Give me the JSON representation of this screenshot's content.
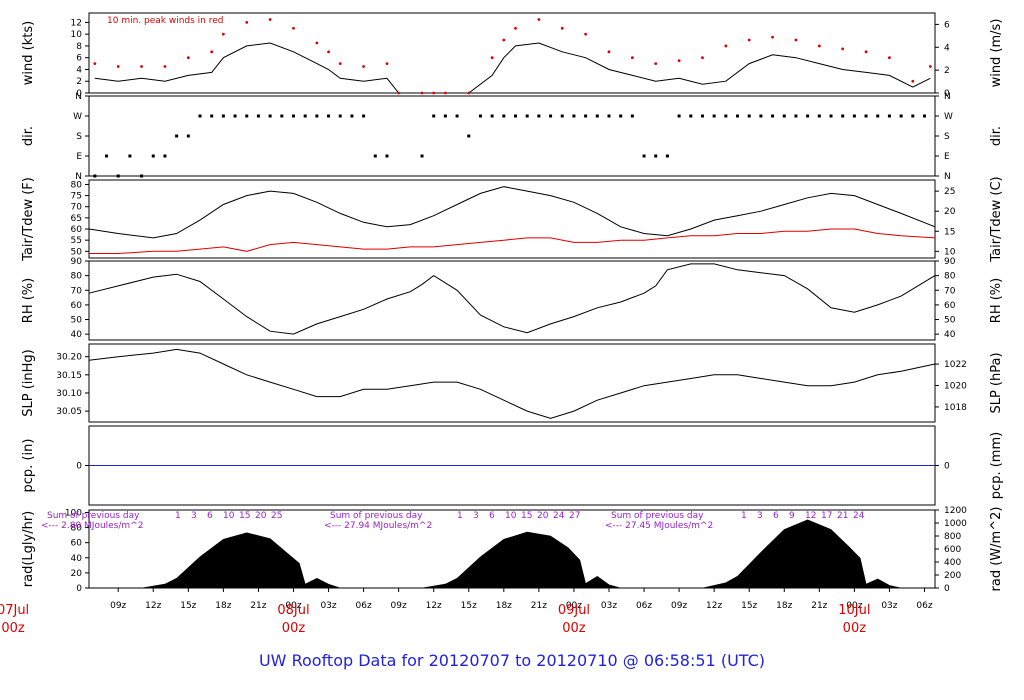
{
  "title": "UW Rooftop Data for 20120707  to  20120710 @ 06:58:51  (UTC)",
  "colors": {
    "title": "#2222dd",
    "red": "#dd0000",
    "blue": "#2222dd",
    "purple": "#9922cc",
    "black": "#000000"
  },
  "x_axis": {
    "hour_ticks": [
      "09z",
      "12z",
      "15z",
      "18z",
      "21z",
      "00z",
      "03z",
      "06z",
      "09z",
      "12z",
      "15z",
      "18z",
      "21z",
      "00z",
      "03z",
      "06z",
      "09z",
      "12z",
      "15z",
      "18z",
      "21z",
      "00z",
      "03z",
      "06z"
    ],
    "day_labels": [
      {
        "day": "07Jul",
        "time": "00z"
      },
      {
        "day": "08Jul",
        "time": "00z"
      },
      {
        "day": "09Jul",
        "time": "00z"
      },
      {
        "day": "10Jul",
        "time": "00z"
      }
    ]
  },
  "panels": {
    "wind": {
      "ylabel_left": "wind (kts)",
      "ylabel_right": "wind (m/s)",
      "left_ticks": [
        "0",
        "2",
        "4",
        "6",
        "8",
        "10",
        "12"
      ],
      "right_ticks": [
        "0",
        "2",
        "4",
        "6"
      ],
      "annotation": "10 min. peak winds in red"
    },
    "dir": {
      "ylabel": "dir.",
      "ticks": [
        "N",
        "E",
        "S",
        "W",
        "N"
      ]
    },
    "temp": {
      "ylabel_left": "Tair/Tdew (F)",
      "ylabel_right": "Tair/Tdew (C)",
      "left_ticks": [
        "50",
        "55",
        "60",
        "65",
        "70",
        "75",
        "80"
      ],
      "right_ticks": [
        "10",
        "15",
        "20",
        "25"
      ]
    },
    "rh": {
      "ylabel": "RH (%)",
      "ticks": [
        "40",
        "50",
        "60",
        "70",
        "80",
        "90"
      ]
    },
    "slp": {
      "ylabel_left": "SLP (inHg)",
      "ylabel_right": "SLP (hPa)",
      "left_ticks": [
        "30.05",
        "30.10",
        "30.15",
        "30.20"
      ],
      "right_ticks": [
        "1018",
        "1020",
        "1022"
      ]
    },
    "pcp": {
      "ylabel_left": "pcp. (in)",
      "ylabel_right": "pcp. (mm)",
      "left_ticks": [
        "0"
      ],
      "right_ticks": [
        "0"
      ]
    },
    "rad": {
      "ylabel_left": "rad(Lgly/hr)",
      "ylabel_right": "rad (W/m^2)",
      "left_ticks": [
        "0",
        "20",
        "40",
        "60",
        "80",
        "100"
      ],
      "right_ticks": [
        "0",
        "200",
        "400",
        "600",
        "800",
        "1000",
        "1200"
      ],
      "sum_label": "Sum of previous day",
      "sums": [
        "<--- 2.80 MJoules/m^2",
        "<--- 27.94 MJoules/m^2",
        "<--- 27.45 MJoules/m^2"
      ],
      "hour_marks": [
        [
          "1",
          "3",
          "6",
          "10",
          "15",
          "20",
          "25"
        ],
        [
          "1",
          "3",
          "6",
          "10",
          "15",
          "20",
          "24",
          "27"
        ],
        [
          "1",
          "3",
          "6",
          "9",
          "12",
          "17",
          "21",
          "24"
        ]
      ]
    }
  },
  "chart_data": {
    "type": "line",
    "time_axis": {
      "unit": "hours since 07Jul 00z",
      "range": [
        6.5,
        78.9
      ]
    },
    "series": [
      {
        "panel": "wind",
        "name": "wind speed (kts)",
        "x": [
          7,
          9,
          11,
          13,
          15,
          17,
          18,
          20,
          22,
          24,
          26,
          27,
          28,
          30,
          32,
          33,
          35,
          36,
          37,
          39,
          41,
          42,
          43,
          45,
          47,
          49,
          51,
          53,
          55,
          57,
          59,
          61,
          63,
          65,
          67,
          69,
          71,
          73,
          75,
          77,
          78.5
        ],
        "y": [
          2.5,
          2,
          2.5,
          2,
          3,
          3.5,
          6,
          8,
          8.5,
          7,
          5,
          4,
          2.5,
          2,
          2.5,
          0,
          0,
          0,
          0,
          0,
          3,
          6,
          8,
          8.5,
          7,
          6,
          4,
          3,
          2,
          2.5,
          1.5,
          2,
          5,
          6.5,
          6,
          5,
          4,
          3.5,
          3,
          1,
          2.5
        ]
      },
      {
        "panel": "wind",
        "name": "10 min. peak winds in red",
        "x": [
          7,
          9,
          11,
          13,
          15,
          17,
          18,
          20,
          22,
          24,
          26,
          27,
          28,
          30,
          32,
          33,
          35,
          36,
          37,
          39,
          41,
          42,
          43,
          45,
          47,
          49,
          51,
          53,
          55,
          57,
          59,
          61,
          63,
          65,
          67,
          69,
          71,
          73,
          75,
          77,
          78.5
        ],
        "y": [
          5,
          4.5,
          4.5,
          4.5,
          6,
          7,
          10,
          12,
          12.5,
          11,
          8.5,
          7,
          5,
          4.5,
          5,
          0,
          0,
          0,
          0,
          0,
          6,
          9,
          11,
          12.5,
          11,
          10,
          7,
          6,
          5,
          5.5,
          6,
          8,
          9,
          9.5,
          9,
          8,
          7.5,
          7,
          6,
          2,
          4.5
        ]
      },
      {
        "panel": "temp",
        "name": "Tair (F)",
        "x": [
          6.5,
          9,
          12,
          14,
          16,
          18,
          20,
          22,
          24,
          26,
          28,
          30,
          32,
          34,
          36,
          38,
          40,
          42,
          44,
          46,
          48,
          50,
          52,
          54,
          56,
          58,
          60,
          62,
          64,
          66,
          68,
          70,
          72,
          74,
          76,
          78.9
        ],
        "y": [
          60,
          58,
          56,
          58,
          64,
          71,
          75,
          77,
          76,
          72,
          67,
          63,
          61,
          62,
          66,
          71,
          76,
          79,
          77,
          75,
          72,
          67,
          61,
          58,
          57,
          60,
          64,
          66,
          68,
          71,
          74,
          76,
          75,
          71,
          67,
          61
        ]
      },
      {
        "panel": "temp",
        "name": "Tdew (F)",
        "x": [
          6.5,
          9,
          12,
          14,
          16,
          18,
          20,
          22,
          24,
          26,
          28,
          30,
          32,
          34,
          36,
          38,
          40,
          42,
          44,
          46,
          48,
          50,
          52,
          54,
          56,
          58,
          60,
          62,
          64,
          66,
          68,
          70,
          72,
          74,
          76,
          78.9
        ],
        "y": [
          49,
          49,
          50,
          50,
          51,
          52,
          50,
          53,
          54,
          53,
          52,
          51,
          51,
          52,
          52,
          53,
          54,
          55,
          56,
          56,
          54,
          54,
          55,
          55,
          56,
          57,
          57,
          58,
          58,
          59,
          59,
          60,
          60,
          58,
          57,
          56
        ]
      },
      {
        "panel": "rh",
        "name": "RH (%)",
        "x": [
          6.5,
          9,
          12,
          14,
          16,
          18,
          20,
          22,
          24,
          26,
          28,
          30,
          32,
          34,
          35,
          36,
          38,
          40,
          42,
          44,
          46,
          48,
          50,
          52,
          54,
          55,
          56,
          58,
          60,
          62,
          64,
          66,
          68,
          70,
          72,
          74,
          76,
          78.9
        ],
        "y": [
          68,
          73,
          79,
          81,
          76,
          64,
          52,
          42,
          40,
          47,
          52,
          57,
          64,
          69,
          74,
          80,
          70,
          53,
          45,
          41,
          47,
          52,
          58,
          62,
          68,
          73,
          84,
          88,
          88,
          84,
          82,
          80,
          71,
          58,
          55,
          60,
          66,
          80
        ]
      },
      {
        "panel": "slp",
        "name": "SLP (inHg)",
        "x": [
          6.5,
          9,
          12,
          14,
          16,
          18,
          20,
          22,
          24,
          26,
          28,
          30,
          32,
          34,
          36,
          38,
          40,
          42,
          44,
          46,
          48,
          50,
          52,
          54,
          56,
          58,
          60,
          62,
          64,
          66,
          68,
          70,
          72,
          74,
          76,
          78.9
        ],
        "y": [
          30.19,
          30.2,
          30.21,
          30.22,
          30.21,
          30.18,
          30.15,
          30.13,
          30.11,
          30.09,
          30.09,
          30.11,
          30.11,
          30.12,
          30.13,
          30.13,
          30.11,
          30.08,
          30.05,
          30.03,
          30.05,
          30.08,
          30.1,
          30.12,
          30.13,
          30.14,
          30.15,
          30.15,
          30.14,
          30.13,
          30.12,
          30.12,
          30.13,
          30.15,
          30.16,
          30.18
        ]
      },
      {
        "panel": "pcp",
        "name": "pcp. (in)",
        "x": [
          6.5,
          78.9
        ],
        "y": [
          0,
          0
        ]
      },
      {
        "panel": "rad",
        "name": "rad (W/m^2)",
        "x": [
          11,
          13,
          14,
          16,
          18,
          20,
          22,
          23.5,
          24.5,
          25,
          26,
          27,
          28,
          29,
          35,
          37,
          38,
          40,
          42,
          44,
          46,
          47.5,
          48.5,
          49,
          50,
          51,
          52,
          53,
          59,
          61,
          62,
          64,
          66,
          68,
          70,
          71.5,
          72.5,
          73,
          74,
          75,
          76,
          77
        ],
        "y": [
          0,
          60,
          150,
          480,
          750,
          850,
          760,
          530,
          380,
          60,
          150,
          60,
          0,
          0,
          0,
          60,
          150,
          480,
          750,
          860,
          800,
          620,
          430,
          70,
          180,
          50,
          0,
          0,
          0,
          80,
          180,
          550,
          900,
          1050,
          900,
          640,
          460,
          60,
          140,
          40,
          0,
          0
        ]
      }
    ],
    "direction_points": {
      "panel": "dir",
      "x": [
        7,
        8,
        9,
        10,
        11,
        12,
        13,
        14,
        15,
        16,
        17,
        18,
        19,
        20,
        21,
        22,
        23,
        24,
        25,
        26,
        27,
        28,
        29,
        30,
        31,
        32,
        35,
        36,
        37,
        38,
        39,
        40,
        41,
        42,
        43,
        44,
        45,
        46,
        47,
        48,
        49,
        50,
        51,
        52,
        53,
        54,
        55,
        56,
        57,
        58,
        59,
        60,
        61,
        62,
        63,
        64,
        65,
        66,
        67,
        68,
        69,
        70,
        71,
        72,
        73,
        74,
        75,
        76,
        77,
        78
      ],
      "y": [
        "N",
        "E",
        "N",
        "E",
        "N",
        "E",
        "E",
        "S",
        "S",
        "W",
        "W",
        "W",
        "W",
        "W",
        "W",
        "W",
        "W",
        "W",
        "W",
        "W",
        "W",
        "W",
        "W",
        "W",
        "E",
        "E",
        "E",
        "W",
        "W",
        "W",
        "S",
        "W",
        "W",
        "W",
        "W",
        "W",
        "W",
        "W",
        "W",
        "W",
        "W",
        "W",
        "W",
        "W",
        "W",
        "E",
        "E",
        "E",
        "W",
        "W",
        "W",
        "W",
        "W",
        "W",
        "W",
        "W",
        "W",
        "W",
        "W",
        "W",
        "W",
        "W",
        "W",
        "W",
        "W",
        "W",
        "W",
        "W",
        "W",
        "W"
      ]
    }
  }
}
